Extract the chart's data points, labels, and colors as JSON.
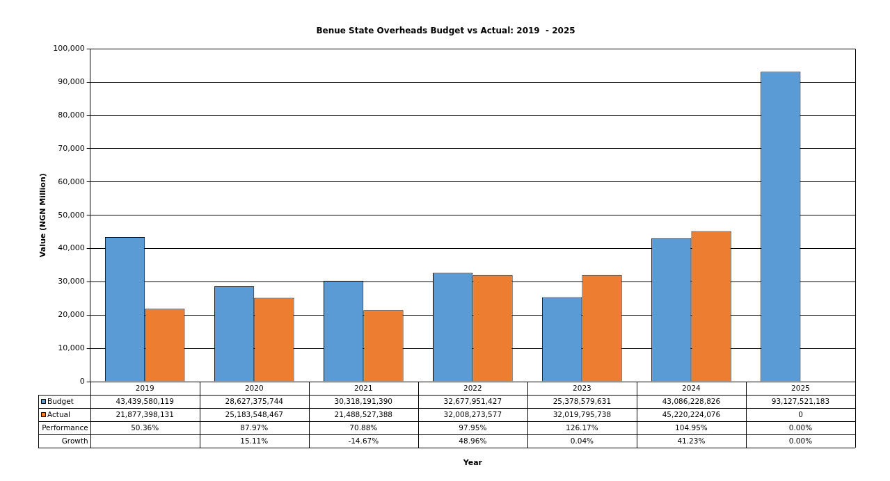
{
  "chart_data": {
    "type": "bar",
    "title": "Benue State Overheads Budget vs Actual: 2019  - 2025",
    "ylabel": "Value (NGN Million)",
    "categories": [
      "2019",
      "2020",
      "2021",
      "2022",
      "2023",
      "2024",
      "2025"
    ],
    "ylim": [
      0,
      100000
    ],
    "yticks": [
      0,
      {
        "value": 10000,
        "label": "10,000"
      },
      {
        "value": 20000,
        "label": "20,000"
      },
      {
        "value": 30000,
        "label": "30,000"
      },
      {
        "value": 40000,
        "label": "40,000"
      },
      {
        "value": 50000,
        "label": "50,000"
      },
      {
        "value": 60000,
        "label": "60,000"
      },
      {
        "value": 70000,
        "label": "70,000"
      },
      {
        "value": 80000,
        "label": "80,000"
      },
      {
        "value": 90000,
        "label": "90,000"
      },
      {
        "value": 100000,
        "label": "100,000"
      }
    ],
    "grid": "y",
    "legend": "bottom",
    "series": [
      {
        "name": "Budget",
        "color": "#5b9bd5",
        "values": [
          43439.580119,
          28627.375744,
          30318.19139,
          32677.951427,
          25378.579631,
          43086.228826,
          93127.521183
        ]
      },
      {
        "name": "Actual",
        "color": "#ed7d31",
        "values": [
          21877.398131,
          25183.548467,
          21488.527388,
          32008.273577,
          32019.795738,
          45220.224076,
          0
        ]
      }
    ],
    "annotations": [
      "Year",
      "43,439,580,119",
      "28,627,375,744",
      "30,318,191,390",
      "32,677,951,427",
      "25,378,579,631",
      "43,086,228,826",
      "93,127,521,183",
      "21,877,398,131",
      "25,183,548,467",
      "21,488,527,388",
      "32,008,273,577",
      "32,019,795,738",
      "45,220,224,076",
      "0",
      "Performance",
      "50.36%",
      "87.97%",
      "70.88%",
      "97.95%",
      "126.17%",
      "104.95%",
      "0.00%",
      "Growth",
      "15.11%",
      "-14.67%",
      "48.96%",
      "0.04%",
      "41.23%",
      "0.00%"
    ]
  }
}
